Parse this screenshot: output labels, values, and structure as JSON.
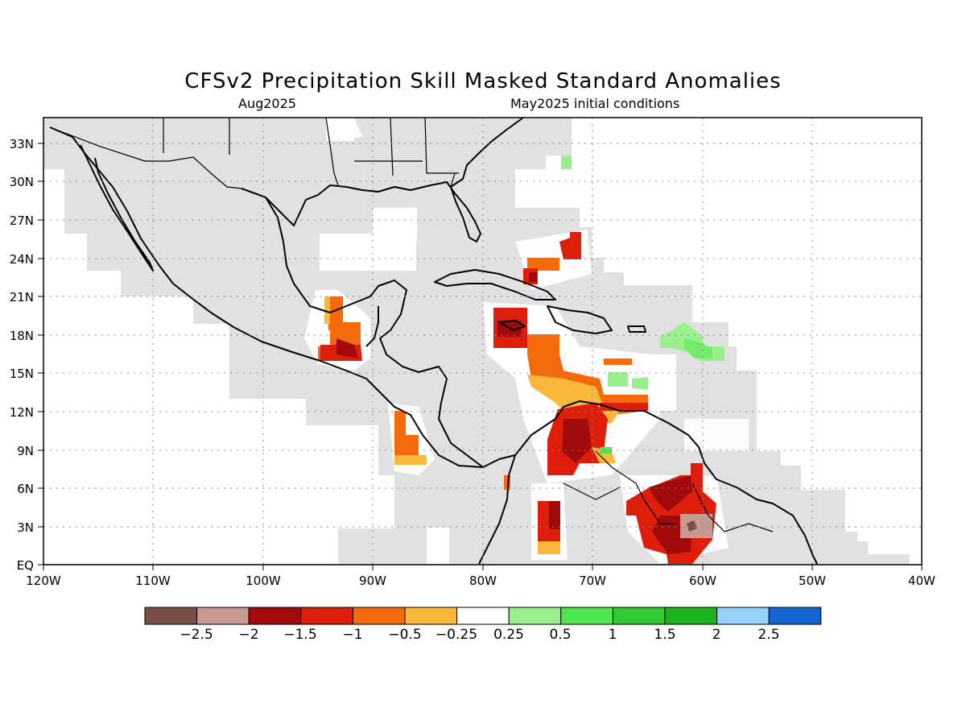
{
  "title": "CFSv2 Precipitation Skill Masked Standard Anomalies",
  "subtitle_left": "Aug2025",
  "subtitle_right": "May2025 initial conditions",
  "lat_labels": [
    "EQ",
    "3N",
    "6N",
    "9N",
    "12N",
    "15N",
    "18N",
    "21N",
    "24N",
    "27N",
    "30N",
    "33N"
  ],
  "lon_labels": [
    "120W",
    "110W",
    "100W",
    "90W",
    "80W",
    "70W",
    "60W",
    "50W",
    "40W"
  ],
  "colorbar": {
    "colors": [
      "#7a4e46",
      "#c89a92",
      "#a00a0a",
      "#dc1e0a",
      "#f56a0a",
      "#fbb93c",
      "#ffffff",
      "#9af08c",
      "#50e650",
      "#32c832",
      "#1eb41e",
      "#96d2fa",
      "#1464d2"
    ],
    "labels": [
      "−2.5",
      "−2",
      "−1.5",
      "−1",
      "−0.5",
      "−0.25",
      "0.25",
      "0.5",
      "1",
      "1.5",
      "2",
      "2.5"
    ]
  },
  "colors": {
    "masked_gray": "#e1e1e1",
    "coast": "#000000"
  }
}
